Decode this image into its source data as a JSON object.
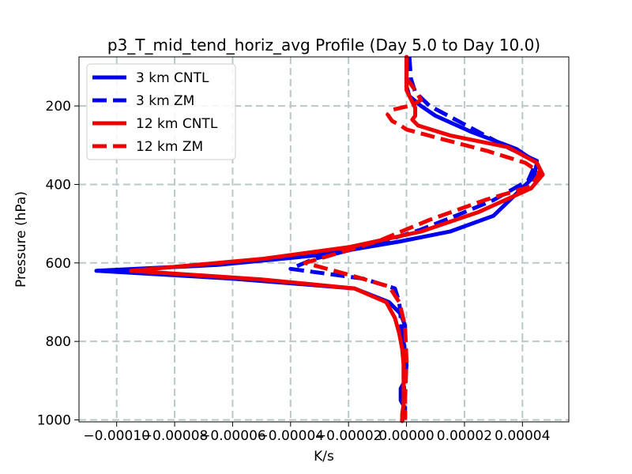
{
  "chart_data": {
    "type": "line",
    "title": "p3_T_mid_tend_horiz_avg Profile (Day 5.0 to Day 10.0)",
    "xlabel": "K/s",
    "ylabel": "Pressure (hPa)",
    "xlim": [
      -0.000113,
      5.6e-05
    ],
    "ylim": [
      1005,
      75
    ],
    "y_inverted": true,
    "grid": true,
    "legend_position": "upper-left",
    "xticks": [
      -0.0001,
      -8e-05,
      -6e-05,
      -4e-05,
      -2e-05,
      0.0,
      2e-05,
      4e-05
    ],
    "xtick_labels": [
      "−0.00010",
      "−0.00008",
      "−0.00006",
      "−0.00004",
      "−0.00002",
      "0.00000",
      "0.00002",
      "0.00004"
    ],
    "yticks": [
      200,
      400,
      600,
      800,
      1000
    ],
    "ytick_labels": [
      "200",
      "400",
      "600",
      "800",
      "1000"
    ],
    "series": [
      {
        "name": "3 km CNTL",
        "color": "#0000ee",
        "style": "solid",
        "x": [
          0.0,
          0.0,
          0.0,
          0.0,
          0.0,
          1e-06,
          5e-06,
          1e-05,
          2.2e-05,
          3.8e-05,
          4.5e-05,
          4.4e-05,
          3.7e-05,
          3e-05,
          1.5e-05,
          -2e-06,
          -3e-05,
          -6.5e-05,
          -0.000107,
          -6e-05,
          -1.8e-05,
          -6e-06,
          -2e-06,
          -5e-07,
          -1e-06,
          -5e-07,
          0.0,
          -5e-07,
          -2e-06,
          -2e-06,
          -5e-07,
          -1e-06,
          -1.5e-06
        ],
        "y": [
          75,
          100,
          120,
          130,
          150,
          175,
          200,
          225,
          265,
          310,
          345,
          380,
          430,
          480,
          520,
          545,
          580,
          605,
          620,
          640,
          665,
          700,
          730,
          760,
          800,
          830,
          860,
          900,
          920,
          950,
          970,
          990,
          1003
        ]
      },
      {
        "name": "3 km ZM",
        "color": "#0000ee",
        "style": "dashed",
        "x": [
          1e-06,
          1.5e-06,
          3e-06,
          8e-06,
          2.2e-05,
          3.6e-05,
          4.5e-05,
          4.2e-05,
          3e-05,
          1.7e-05,
          5e-06,
          -1e-05,
          -3.2e-05,
          -4e-05,
          -1.5e-05,
          -4e-06,
          -2.5e-06,
          -2e-06,
          -1.5e-06,
          -1e-06,
          -1e-06,
          -5e-07,
          -5e-07
        ],
        "y": [
          75,
          130,
          165,
          200,
          255,
          310,
          340,
          390,
          440,
          480,
          515,
          550,
          590,
          615,
          640,
          665,
          700,
          740,
          800,
          850,
          900,
          950,
          1000
        ]
      },
      {
        "name": "12 km CNTL",
        "color": "#ee0000",
        "style": "solid",
        "x": [
          0.0,
          0.0,
          0.0,
          0.0,
          0.0,
          2e-06,
          3e-06,
          3e-06,
          3e-06,
          2e-06,
          4e-06,
          1.5e-05,
          3.5e-05,
          4.5e-05,
          4.7e-05,
          4.3e-05,
          2.5e-05,
          5e-06,
          -2e-05,
          -5e-05,
          -9.5e-05,
          -5e-05,
          -1.8e-05,
          -7e-06,
          -4e-06,
          -2.5e-06,
          -1.5e-06,
          -1e-06,
          -1e-06,
          -1e-06,
          -1e-06,
          -1.5e-06,
          -1.5e-06
        ],
        "y": [
          75,
          100,
          120,
          130,
          160,
          190,
          205,
          215,
          225,
          235,
          250,
          275,
          305,
          345,
          375,
          410,
          470,
          520,
          560,
          590,
          620,
          642,
          665,
          700,
          740,
          780,
          820,
          860,
          900,
          930,
          960,
          985,
          1003
        ]
      },
      {
        "name": "12 km ZM",
        "color": "#ee0000",
        "style": "dashed",
        "x": [
          0.0,
          3e-06,
          5e-06,
          2e-06,
          -5e-06,
          -6.5e-06,
          -5e-06,
          -2e-06,
          0.0,
          1e-05,
          2.8e-05,
          4.1e-05,
          4.6e-05,
          4.3e-05,
          2.7e-05,
          8e-06,
          -1e-05,
          -3.5e-05,
          -2e-05,
          -6e-06,
          -2.5e-06,
          -5e-07,
          0.0,
          -5e-07,
          -5e-07
        ],
        "y": [
          130,
          160,
          185,
          198,
          210,
          222,
          238,
          250,
          260,
          280,
          315,
          345,
          370,
          405,
          440,
          490,
          545,
          600,
          630,
          660,
          700,
          760,
          850,
          950,
          1000
        ]
      }
    ]
  }
}
